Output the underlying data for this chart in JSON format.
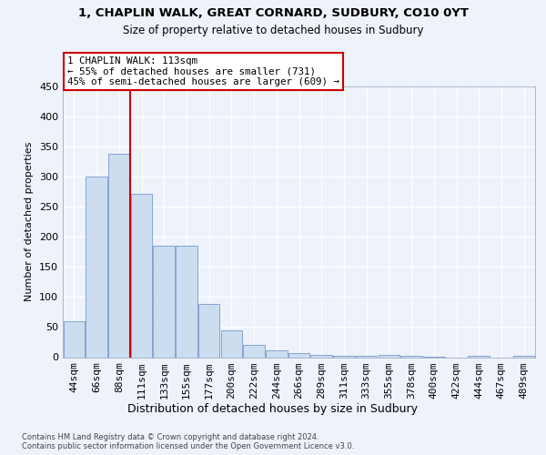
{
  "title1": "1, CHAPLIN WALK, GREAT CORNARD, SUDBURY, CO10 0YT",
  "title2": "Size of property relative to detached houses in Sudbury",
  "xlabel": "Distribution of detached houses by size in Sudbury",
  "ylabel": "Number of detached properties",
  "categories": [
    "44sqm",
    "66sqm",
    "88sqm",
    "111sqm",
    "133sqm",
    "155sqm",
    "177sqm",
    "200sqm",
    "222sqm",
    "244sqm",
    "266sqm",
    "289sqm",
    "311sqm",
    "333sqm",
    "355sqm",
    "378sqm",
    "400sqm",
    "422sqm",
    "444sqm",
    "467sqm",
    "489sqm"
  ],
  "values": [
    60,
    301,
    338,
    271,
    185,
    185,
    88,
    44,
    21,
    11,
    7,
    4,
    2,
    3,
    4,
    2,
    1,
    0,
    2,
    0,
    2
  ],
  "bar_color": "#ccddf0",
  "bar_edge_color": "#7799cc",
  "vline_x_index": 2,
  "vline_color": "#cc0000",
  "annotation_text": "1 CHAPLIN WALK: 113sqm\n← 55% of detached houses are smaller (731)\n45% of semi-detached houses are larger (609) →",
  "annotation_box_color": "#ffffff",
  "annotation_box_edge_color": "#cc0000",
  "ylim": [
    0,
    450
  ],
  "yticks": [
    0,
    50,
    100,
    150,
    200,
    250,
    300,
    350,
    400,
    450
  ],
  "footnote": "Contains HM Land Registry data © Crown copyright and database right 2024.\nContains public sector information licensed under the Open Government Licence v3.0.",
  "background_color": "#eef2fb",
  "plot_background_color": "#eef2fb",
  "title1_fontsize": 9.5,
  "title2_fontsize": 8.5
}
